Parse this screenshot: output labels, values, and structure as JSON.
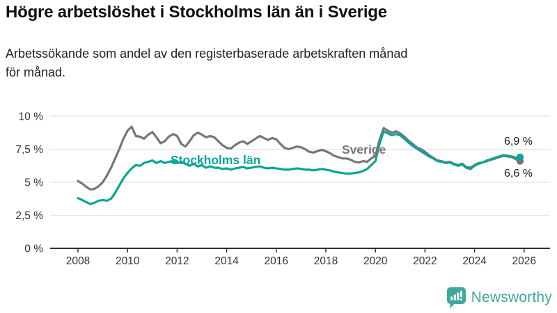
{
  "header": {
    "title": "Högre arbetslöshet i Stockholms län än i Sverige",
    "subtitle": "Arbetssökande som andel av den registerbaserade arbetskraften månad för månad.",
    "subtitle_lines": [
      "Arbetssökande som andel av den registerbaserade arbetskraften månad",
      "för månad."
    ]
  },
  "chart_data": {
    "type": "line",
    "title": "Högre arbetslöshet i Stockholms län än i Sverige",
    "xlabel": "",
    "ylabel": "Arbetssökande som andel av den registerbaserade arbetskraften",
    "ylim": [
      0,
      10
    ],
    "grid": "horizontal",
    "legend_position": "inline-labels",
    "x_start_year": 2008,
    "x_step_months": 2,
    "yticks": [
      {
        "value": 0,
        "label": "0 %"
      },
      {
        "value": 2.5,
        "label": "2,5 %"
      },
      {
        "value": 5,
        "label": "5 %"
      },
      {
        "value": 7.5,
        "label": "7,5 %"
      },
      {
        "value": 10,
        "label": "10 %"
      }
    ],
    "xticks": [
      {
        "value": 2008,
        "label": "2008"
      },
      {
        "value": 2010,
        "label": "2010"
      },
      {
        "value": 2012,
        "label": "2012"
      },
      {
        "value": 2014,
        "label": "2014"
      },
      {
        "value": 2016,
        "label": "2016"
      },
      {
        "value": 2018,
        "label": "2018"
      },
      {
        "value": 2020,
        "label": "2020"
      },
      {
        "value": 2022,
        "label": "2022"
      },
      {
        "value": 2024,
        "label": "2024"
      },
      {
        "value": 2026,
        "label": "2026"
      }
    ],
    "series": [
      {
        "name": "Sverige",
        "color": "#76767b",
        "end_value": 6.6,
        "end_label": "6,6 %",
        "values": [
          5.1,
          4.9,
          4.65,
          4.45,
          4.5,
          4.7,
          5.0,
          5.5,
          6.1,
          6.8,
          7.5,
          8.3,
          8.9,
          9.2,
          8.5,
          8.45,
          8.3,
          8.6,
          8.8,
          8.4,
          7.95,
          8.1,
          8.45,
          8.65,
          8.5,
          7.9,
          7.7,
          8.1,
          8.55,
          8.75,
          8.6,
          8.4,
          8.5,
          8.4,
          8.1,
          7.8,
          7.6,
          7.55,
          7.8,
          8.0,
          8.1,
          7.9,
          8.1,
          8.3,
          8.5,
          8.35,
          8.2,
          8.35,
          8.25,
          7.9,
          7.6,
          7.5,
          7.6,
          7.7,
          7.65,
          7.5,
          7.3,
          7.25,
          7.35,
          7.45,
          7.35,
          7.2,
          7.0,
          6.9,
          6.8,
          6.8,
          6.7,
          6.55,
          6.5,
          6.6,
          6.55,
          6.8,
          7.0,
          8.2,
          9.1,
          8.9,
          8.75,
          8.85,
          8.7,
          8.45,
          8.15,
          7.9,
          7.65,
          7.5,
          7.3,
          7.05,
          6.85,
          6.65,
          6.6,
          6.5,
          6.55,
          6.4,
          6.3,
          6.4,
          6.15,
          6.1,
          6.3,
          6.45,
          6.5,
          6.6,
          6.7,
          6.8,
          6.9,
          7.0,
          6.95,
          6.9,
          6.75,
          6.6
        ]
      },
      {
        "name": "Stockholms län",
        "color": "#0ca496",
        "end_value": 6.9,
        "end_label": "6,9 %",
        "values": [
          3.8,
          3.65,
          3.5,
          3.35,
          3.45,
          3.6,
          3.65,
          3.6,
          3.75,
          4.2,
          4.75,
          5.3,
          5.7,
          6.05,
          6.3,
          6.25,
          6.45,
          6.55,
          6.65,
          6.45,
          6.6,
          6.45,
          6.55,
          6.6,
          6.45,
          6.55,
          6.4,
          6.25,
          6.4,
          6.2,
          6.3,
          6.1,
          6.2,
          6.1,
          6.1,
          6.0,
          6.05,
          5.95,
          6.05,
          6.1,
          6.15,
          6.05,
          6.1,
          6.15,
          6.2,
          6.1,
          6.05,
          6.1,
          6.05,
          6.0,
          5.95,
          5.95,
          6.0,
          6.05,
          6.0,
          5.95,
          5.95,
          5.9,
          5.95,
          6.0,
          5.95,
          5.9,
          5.8,
          5.75,
          5.7,
          5.65,
          5.65,
          5.7,
          5.75,
          5.85,
          6.0,
          6.3,
          6.6,
          7.9,
          8.85,
          8.7,
          8.55,
          8.65,
          8.55,
          8.3,
          8.0,
          7.75,
          7.55,
          7.35,
          7.15,
          6.95,
          6.8,
          6.6,
          6.55,
          6.45,
          6.5,
          6.35,
          6.25,
          6.35,
          6.1,
          6.0,
          6.25,
          6.4,
          6.5,
          6.65,
          6.75,
          6.85,
          6.95,
          7.05,
          7.0,
          6.95,
          6.85,
          6.9
        ]
      }
    ],
    "colors": {
      "grid": "#dedede",
      "axis": "#2f2f2f",
      "tick_text": "#333333"
    }
  },
  "logo": {
    "brand": "Newsworthy",
    "color": "#3ea89e"
  }
}
